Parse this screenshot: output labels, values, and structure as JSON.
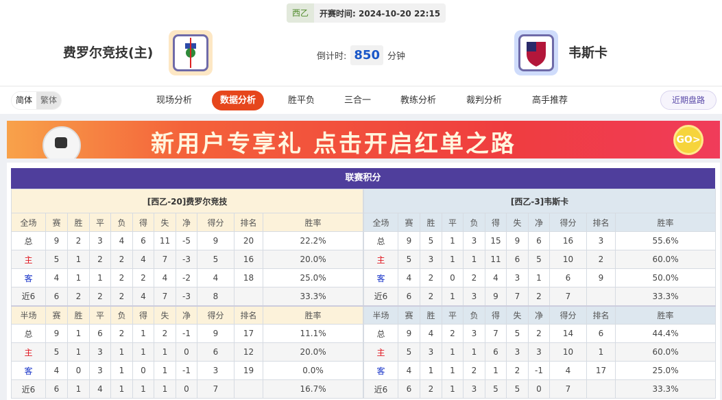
{
  "match": {
    "league": "西乙",
    "kickoff_label": "开赛时间:",
    "kickoff": "2024-10-20 22:15",
    "home": "费罗尔竞技(主)",
    "away": "韦斯卡",
    "countdown_label": "倒计时:",
    "countdown": "850",
    "countdown_unit": "分钟"
  },
  "lang": {
    "simplified": "简体",
    "traditional": "繁体"
  },
  "tabs": [
    "现场分析",
    "数据分析",
    "胜平负",
    "三合一",
    "教练分析",
    "裁判分析",
    "高手推荐"
  ],
  "active_tab": "数据分析",
  "recent_button": "近期盘路",
  "banner": {
    "text": "新用户专享礼  点击开启红单之路",
    "go": "GO>"
  },
  "standings": {
    "title": "联赛积分",
    "columns_full": [
      "全场",
      "赛",
      "胜",
      "平",
      "负",
      "得",
      "失",
      "净",
      "得分",
      "排名",
      "胜率"
    ],
    "columns_half": [
      "半场",
      "赛",
      "胜",
      "平",
      "负",
      "得",
      "失",
      "净",
      "得分",
      "排名",
      "胜率"
    ],
    "home": {
      "header": "[西乙-20]费罗尔竞技",
      "full": [
        [
          "总",
          "9",
          "2",
          "3",
          "4",
          "6",
          "11",
          "-5",
          "9",
          "20",
          "22.2%"
        ],
        [
          "主",
          "5",
          "1",
          "2",
          "2",
          "4",
          "7",
          "-3",
          "5",
          "16",
          "20.0%"
        ],
        [
          "客",
          "4",
          "1",
          "1",
          "2",
          "2",
          "4",
          "-2",
          "4",
          "18",
          "25.0%"
        ],
        [
          "近6",
          "6",
          "2",
          "2",
          "2",
          "4",
          "7",
          "-3",
          "8",
          "",
          "33.3%"
        ]
      ],
      "half": [
        [
          "总",
          "9",
          "1",
          "6",
          "2",
          "1",
          "2",
          "-1",
          "9",
          "17",
          "11.1%"
        ],
        [
          "主",
          "5",
          "1",
          "3",
          "1",
          "1",
          "1",
          "0",
          "6",
          "12",
          "20.0%"
        ],
        [
          "客",
          "4",
          "0",
          "3",
          "1",
          "0",
          "1",
          "-1",
          "3",
          "19",
          "0.0%"
        ],
        [
          "近6",
          "6",
          "1",
          "4",
          "1",
          "1",
          "1",
          "0",
          "7",
          "",
          "16.7%"
        ]
      ]
    },
    "away": {
      "header": "[西乙-3]韦斯卡",
      "full": [
        [
          "总",
          "9",
          "5",
          "1",
          "3",
          "15",
          "9",
          "6",
          "16",
          "3",
          "55.6%"
        ],
        [
          "主",
          "5",
          "3",
          "1",
          "1",
          "11",
          "6",
          "5",
          "10",
          "2",
          "60.0%"
        ],
        [
          "客",
          "4",
          "2",
          "0",
          "2",
          "4",
          "3",
          "1",
          "6",
          "9",
          "50.0%"
        ],
        [
          "近6",
          "6",
          "2",
          "1",
          "3",
          "9",
          "7",
          "2",
          "7",
          "",
          "33.3%"
        ]
      ],
      "half": [
        [
          "总",
          "9",
          "4",
          "2",
          "3",
          "7",
          "5",
          "2",
          "14",
          "6",
          "44.4%"
        ],
        [
          "主",
          "5",
          "3",
          "1",
          "1",
          "6",
          "3",
          "3",
          "10",
          "1",
          "60.0%"
        ],
        [
          "客",
          "4",
          "1",
          "1",
          "2",
          "1",
          "2",
          "-1",
          "4",
          "17",
          "25.0%"
        ],
        [
          "近6",
          "6",
          "2",
          "1",
          "3",
          "5",
          "5",
          "0",
          "7",
          "",
          "33.3%"
        ]
      ]
    }
  },
  "colors": {
    "accent": "#e6461c",
    "title_bar": "#4f3e9c",
    "home_label": "#e0161f",
    "away_label": "#1632c8"
  }
}
